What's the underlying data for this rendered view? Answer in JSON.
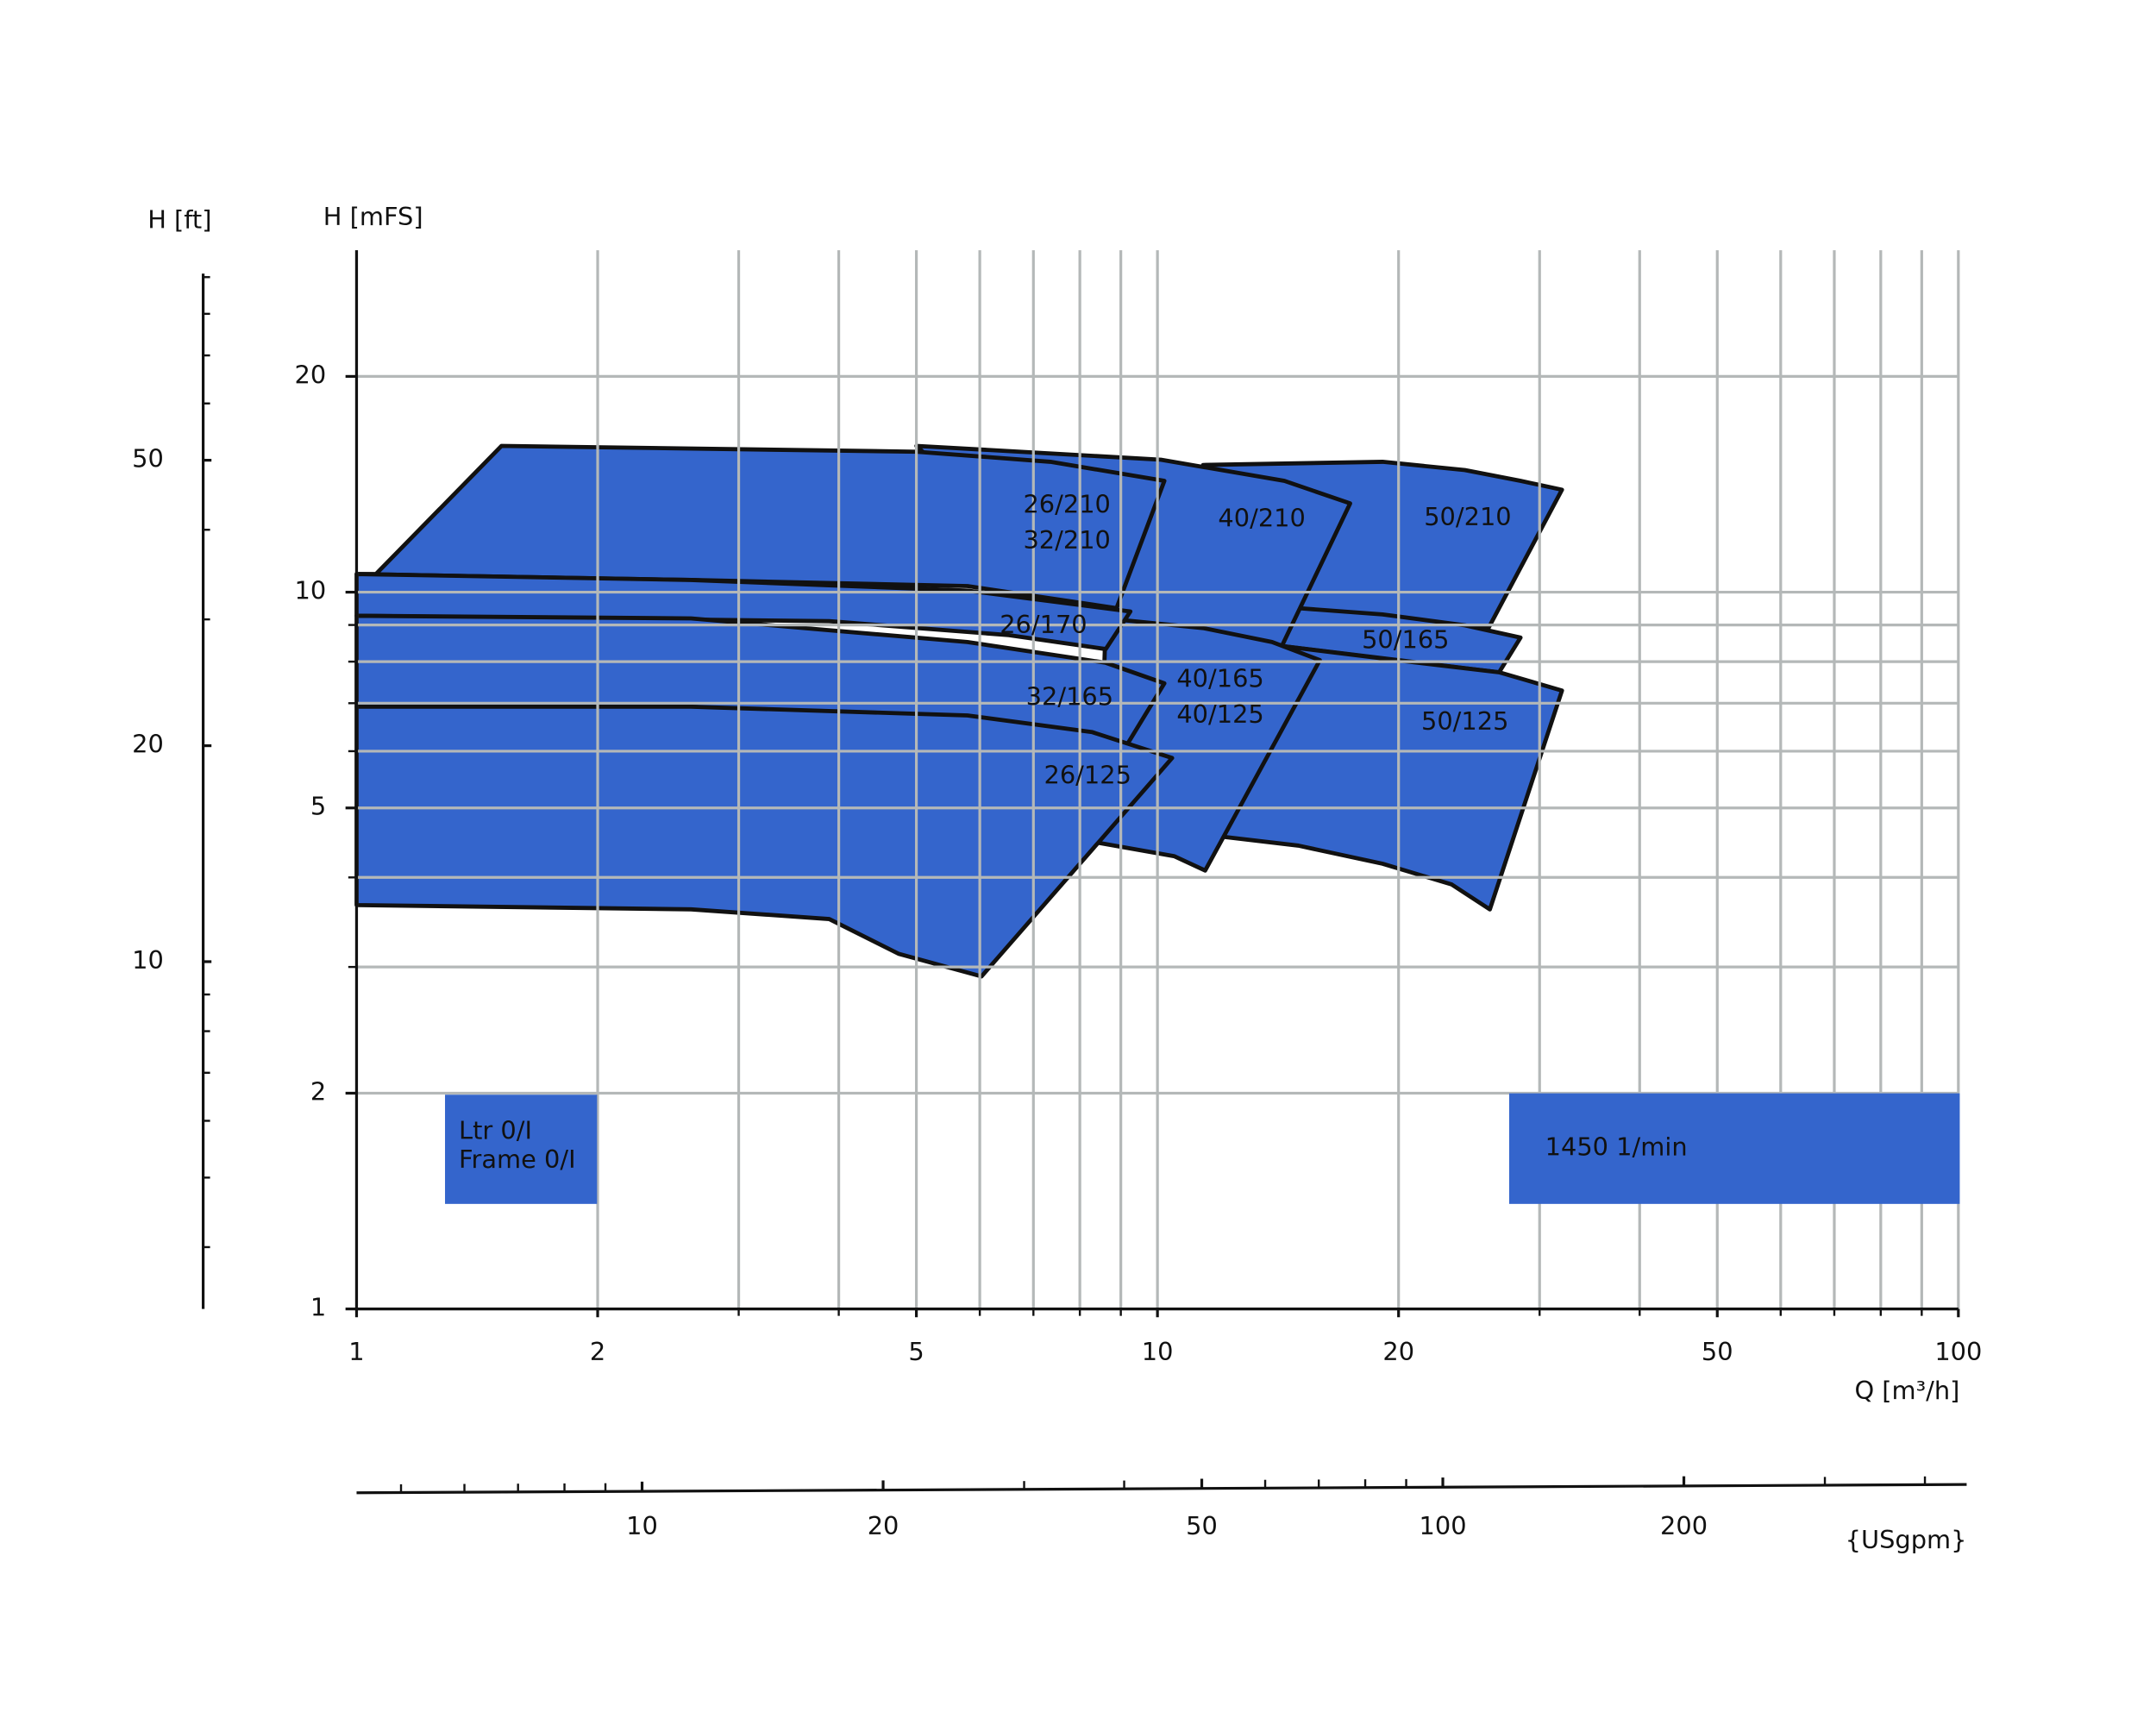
{
  "chart_data": {
    "type": "region",
    "y_label": "H [mFS]",
    "y2_label": "H [ft]",
    "x_label": "Q [m³/h]",
    "x2_label": "{USgpm}",
    "log_x": true,
    "log_y": true,
    "grid": true,
    "color": "#3465cc",
    "xlim": [
      1,
      100
    ],
    "xticks": [
      1,
      2,
      5,
      10,
      20,
      50,
      100
    ],
    "x_minor_ticks": [
      3,
      4,
      6,
      7,
      8,
      9,
      30,
      40,
      60,
      70,
      80,
      90
    ],
    "ylim": [
      1,
      30
    ],
    "yticks": [
      1,
      2,
      5,
      10,
      20
    ],
    "y_minor_ticks": [
      3,
      4,
      6,
      7,
      8,
      9
    ],
    "y2lim": [
      3.28,
      91
    ],
    "y2ticks": [
      10,
      20,
      50
    ],
    "y2_minor_ticks": [
      4,
      5,
      6,
      7,
      8,
      9,
      30,
      40,
      60,
      70,
      80,
      90
    ],
    "x2lim": [
      4.4,
      451
    ],
    "x2ticks": [
      10,
      20,
      50,
      100,
      200
    ],
    "x2_minor_ticks": [
      5,
      6,
      7,
      8,
      9,
      30,
      40,
      60,
      70,
      80,
      90,
      300,
      400
    ],
    "regions": [
      {
        "labels": [
          "50/210"
        ],
        "q": [
          11.4,
          19.1,
          24.2,
          28.4,
          32.0,
          25.9,
          15.0
        ],
        "h": [
          15.05,
          15.2,
          14.8,
          14.3,
          13.9,
          8.91,
          9.5
        ]
      },
      {
        "labels": [
          "50/165"
        ],
        "q": [
          15.0,
          19.1,
          24.2,
          28.4,
          26.7,
          14.3
        ],
        "h": [
          9.5,
          9.31,
          8.99,
          8.64,
          7.73,
          8.41
        ]
      },
      {
        "labels": [
          "50/125"
        ],
        "q": [
          14.3,
          19.85,
          26.7,
          32.0,
          26.0,
          23.3,
          19.1,
          15.0,
          11.84
        ],
        "h": [
          8.41,
          8.04,
          7.73,
          7.29,
          3.61,
          3.91,
          4.18,
          4.43,
          4.57
        ]
      },
      {
        "labels": [
          "40/210"
        ],
        "q": [
          5.0,
          10.1,
          14.4,
          17.4,
          14.3,
          8.62
        ],
        "h": [
          16.0,
          15.3,
          14.3,
          13.3,
          8.41,
          9.11
        ]
      },
      {
        "labels": [
          "40/165",
          "40/125"
        ],
        "q": [
          8.62,
          11.4,
          13.9,
          15.95,
          11.47,
          10.5,
          8.45
        ],
        "h": [
          9.19,
          8.91,
          8.52,
          8.04,
          4.09,
          4.28,
          4.47
        ]
      },
      {
        "labels": [
          "26/210",
          "32/210"
        ],
        "q": [
          1.057,
          1.517,
          5.0,
          7.35,
          10.2,
          8.89,
          5.79,
          2.616,
          1
        ],
        "h": [
          10.6,
          16.0,
          15.7,
          15.2,
          14.3,
          9.5,
          10.2,
          10.4,
          10.6
        ]
      },
      {
        "labels": [
          "26/170"
        ],
        "q": [
          1,
          2.616,
          5.79,
          9.25,
          8.62,
          6.52,
          3.892,
          1
        ],
        "h": [
          10.6,
          10.4,
          10.05,
          9.4,
          8.33,
          8.71,
          9.11,
          9.27
        ]
      },
      {
        "labels": [
          "32/165"
        ],
        "q": [
          1,
          2.616,
          5.79,
          8.62,
          10.2,
          9.15,
          5.79,
          2.616,
          1
        ],
        "h": [
          9.27,
          9.19,
          8.52,
          7.97,
          7.46,
          6.11,
          6.61,
          6.92,
          6.92
        ]
      },
      {
        "labels": [
          "26/125"
        ],
        "q": [
          1,
          2.616,
          5.79,
          8.28,
          10.43,
          6.03,
          4.75,
          3.892,
          2.616,
          1
        ],
        "h": [
          6.92,
          6.92,
          6.73,
          6.38,
          5.87,
          2.91,
          3.13,
          3.5,
          3.61,
          3.66
        ]
      }
    ],
    "notes": [
      "Ltr 0/I",
      "Frame 0/I"
    ],
    "speed": "1450 1/min"
  }
}
